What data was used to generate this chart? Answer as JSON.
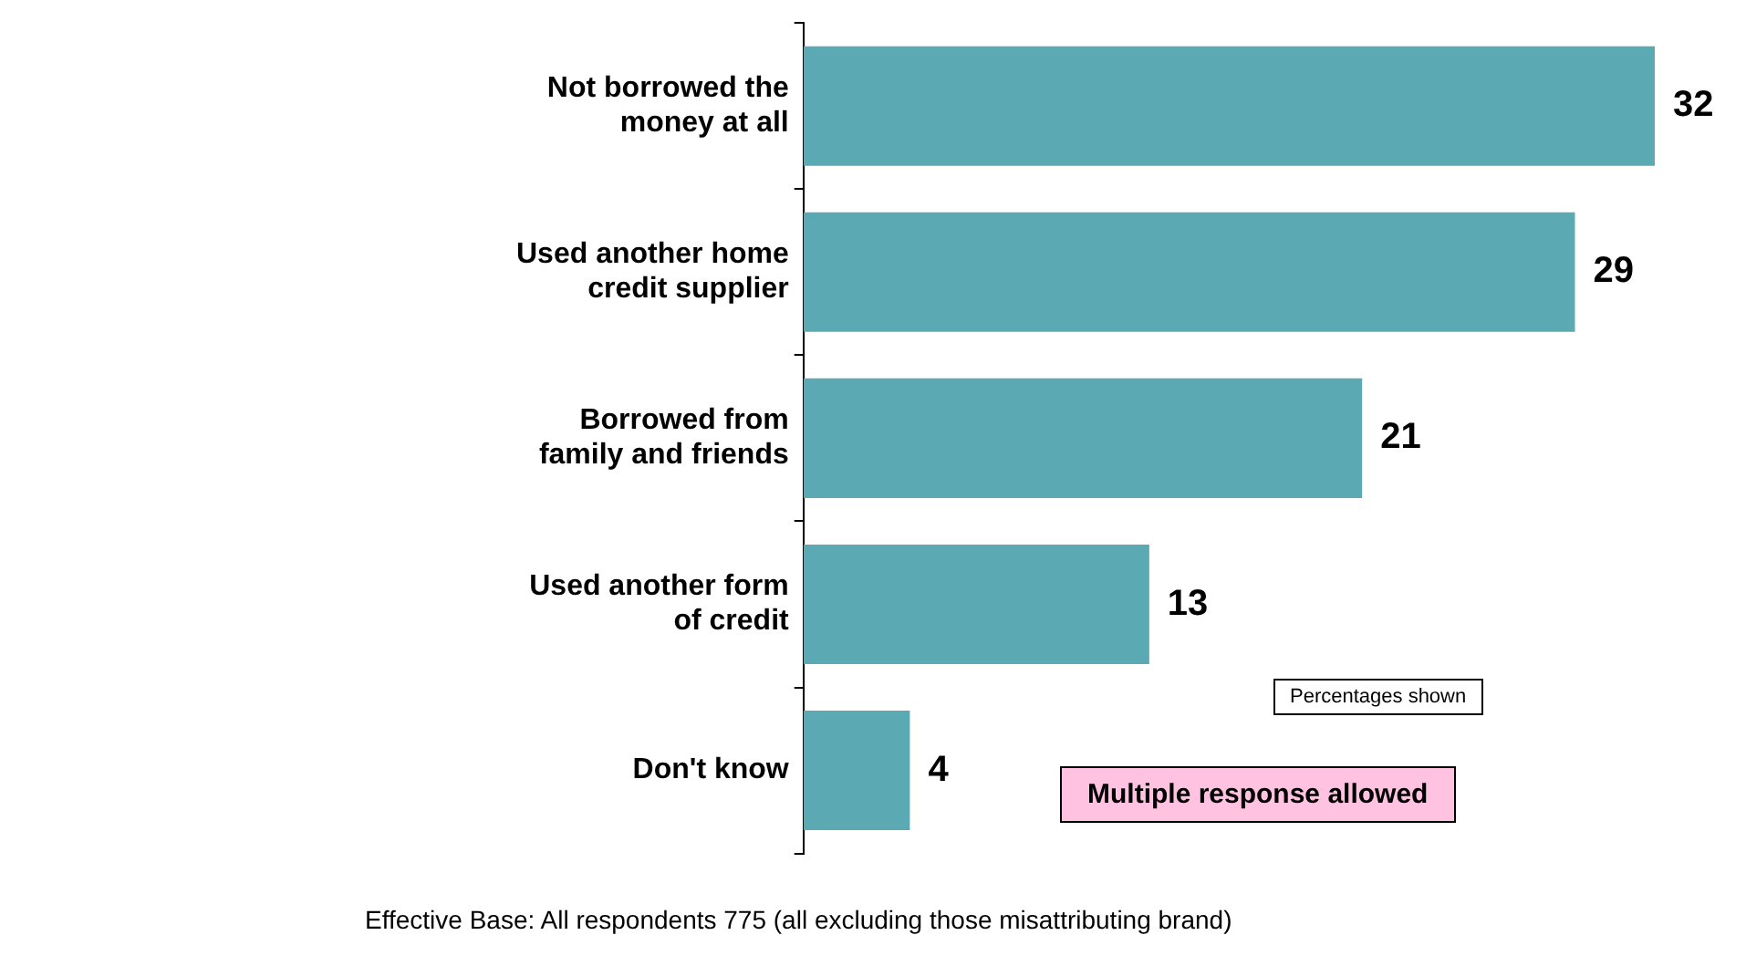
{
  "chart_data": {
    "type": "bar",
    "orientation": "horizontal",
    "categories": [
      "Not borrowed the money at all",
      "Used another home credit supplier",
      "Borrowed from family and friends",
      "Used another form of credit",
      "Don't know"
    ],
    "values": [
      32,
      29,
      21,
      13,
      4
    ],
    "color": "#5aa9b3",
    "data_labels": true,
    "grid": false,
    "legend": false,
    "annotations": [
      "Percentages shown",
      "Multiple response allowed",
      "Effective Base: All respondents 775 (all excluding those misattributing brand)"
    ]
  }
}
